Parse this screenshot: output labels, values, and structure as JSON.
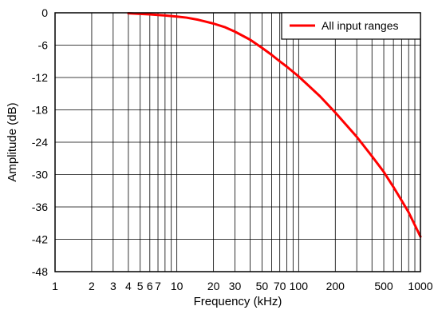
{
  "chart_data": {
    "type": "line",
    "xlabel": "Frequency (kHz)",
    "ylabel": "Amplitude (dB)",
    "x_scale": "log",
    "xlim": [
      1,
      1000
    ],
    "ylim": [
      -48,
      0
    ],
    "grid": true,
    "legend_position": "top-right",
    "x_ticks": [
      1,
      2,
      3,
      4,
      5,
      6,
      7,
      10,
      20,
      30,
      50,
      70,
      100,
      200,
      500,
      1000
    ],
    "x_tick_labels": [
      "1",
      "2",
      "3",
      "4",
      "5",
      "6",
      "7",
      "10",
      "20",
      "30",
      "50",
      "70",
      "100",
      "200",
      "500",
      "1000"
    ],
    "y_ticks": [
      0,
      -6,
      -12,
      -18,
      -24,
      -30,
      -36,
      -42,
      -48
    ],
    "y_tick_labels": [
      "0",
      "-6",
      "-12",
      "-18",
      "-24",
      "-30",
      "-36",
      "-42",
      "-48"
    ],
    "series": [
      {
        "name": "All input ranges",
        "color": "#ff0000",
        "x": [
          4,
          5,
          6,
          7,
          8,
          10,
          12,
          15,
          20,
          25,
          30,
          40,
          50,
          60,
          70,
          80,
          100,
          150,
          200,
          300,
          400,
          500,
          600,
          700,
          800,
          1000
        ],
        "y": [
          -0.1,
          -0.2,
          -0.3,
          -0.4,
          -0.5,
          -0.7,
          -0.9,
          -1.3,
          -2.0,
          -2.7,
          -3.5,
          -5.0,
          -6.5,
          -7.8,
          -9.0,
          -10.0,
          -11.8,
          -15.5,
          -18.5,
          -23.0,
          -26.6,
          -29.5,
          -32.3,
          -34.8,
          -37.0,
          -41.5
        ]
      }
    ]
  }
}
